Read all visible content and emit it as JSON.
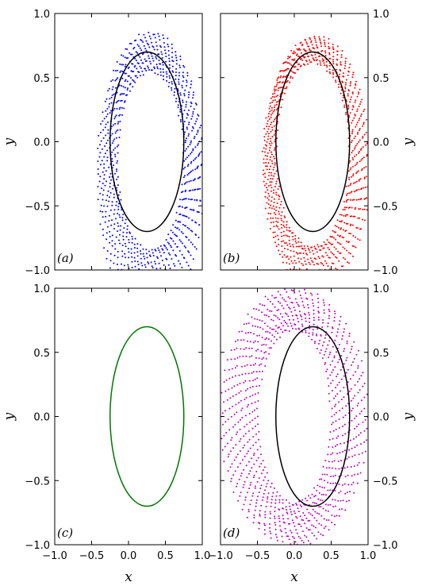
{
  "chart_data": [
    {
      "type": "scatter",
      "panel_label": "(a)",
      "xlim": [
        -1.0,
        1.0
      ],
      "ylim": [
        -1.0,
        1.0
      ],
      "x_ticks": [
        "−1.0",
        "−0.5",
        "0.0",
        "0.5",
        "1.0"
      ],
      "y_ticks": [
        "−1.0",
        "−0.5",
        "0.0",
        "0.5",
        "1.0"
      ],
      "xlabel": "",
      "ylabel": "y",
      "show_x_tick_labels": false,
      "y_label_side": "left",
      "grid": false,
      "reference_ellipse": {
        "center": [
          0.25,
          0.0
        ],
        "rx": 0.5,
        "ry": 0.7,
        "color": "#000000"
      },
      "scatter": {
        "color": "#0000ff",
        "description": "dense dot field hugging the ellipse from outside, spreading downward and left",
        "center": [
          0.3,
          -0.15
        ],
        "inner": [
          0.45,
          0.7
        ],
        "outer": [
          0.72,
          1.0
        ],
        "arc_from_deg": 0,
        "arc_to_deg": 360,
        "shift": [
          0.0,
          -0.18
        ]
      }
    },
    {
      "type": "scatter",
      "panel_label": "(b)",
      "xlim": [
        -1.0,
        1.0
      ],
      "ylim": [
        -1.0,
        1.0
      ],
      "x_ticks": [
        "−1.0",
        "−0.5",
        "0.0",
        "0.5",
        "1.0"
      ],
      "y_ticks": [
        "−1.0",
        "−0.5",
        "0.0",
        "0.5",
        "1.0"
      ],
      "xlabel": "",
      "ylabel": "y",
      "show_x_tick_labels": false,
      "y_label_side": "right",
      "grid": false,
      "reference_ellipse": {
        "center": [
          0.25,
          0.0
        ],
        "rx": 0.5,
        "ry": 0.7,
        "color": "#000000"
      },
      "scatter": {
        "color": "#ff0000",
        "description": "dot band wrapping the ellipse on the lower-right",
        "center": [
          0.25,
          -0.1
        ],
        "inner": [
          0.5,
          0.72
        ],
        "outer": [
          0.72,
          0.92
        ],
        "arc_from_deg": 0,
        "arc_to_deg": 360,
        "shift": [
          0.05,
          -0.12
        ]
      }
    },
    {
      "type": "scatter",
      "panel_label": "(c)",
      "xlim": [
        -1.0,
        1.0
      ],
      "ylim": [
        -1.0,
        1.0
      ],
      "x_ticks": [
        "−1.0",
        "−0.5",
        "0.0",
        "0.5",
        "1.0"
      ],
      "y_ticks": [
        "−1.0",
        "−0.5",
        "0.0",
        "0.5",
        "1.0"
      ],
      "xlabel": "x",
      "ylabel": "y",
      "show_x_tick_labels": true,
      "y_label_side": "left",
      "grid": false,
      "reference_ellipse": {
        "center": [
          0.25,
          0.0
        ],
        "rx": 0.5,
        "ry": 0.7,
        "color": "#007700"
      },
      "scatter": null
    },
    {
      "type": "scatter",
      "panel_label": "(d)",
      "xlim": [
        -1.0,
        1.0
      ],
      "ylim": [
        -1.0,
        1.0
      ],
      "x_ticks": [
        "−1.0",
        "−0.5",
        "0.0",
        "0.5",
        "1.0"
      ],
      "y_ticks": [
        "−1.0",
        "−0.5",
        "0.0",
        "0.5",
        "1.0"
      ],
      "xlabel": "x",
      "ylabel": "y",
      "show_x_tick_labels": true,
      "y_label_side": "right",
      "grid": false,
      "reference_ellipse": {
        "center": [
          0.25,
          0.0
        ],
        "rx": 0.5,
        "ry": 0.7,
        "color": "#000000"
      },
      "scatter": {
        "color": "#bf00bf",
        "description": "thick annulus of dots centered near the origin",
        "center": [
          0.0,
          0.0
        ],
        "inner": [
          0.5,
          0.68
        ],
        "outer": [
          1.0,
          1.0
        ],
        "arc_from_deg": 0,
        "arc_to_deg": 360,
        "shift": [
          0.0,
          0.0
        ]
      }
    }
  ]
}
